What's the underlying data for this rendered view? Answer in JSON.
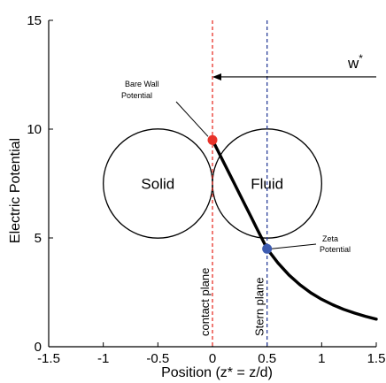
{
  "chart_data": {
    "type": "line",
    "xlabel": "Position (z* = z/d)",
    "ylabel": "Electric Potential",
    "xlim": [
      -1.5,
      1.5
    ],
    "ylim": [
      0,
      15
    ],
    "x_ticks": [
      "-1.5",
      "-1",
      "-0.5",
      "0",
      "0.5",
      "1",
      "1.5"
    ],
    "y_ticks": [
      "0",
      "5",
      "10",
      "15"
    ],
    "grid": false,
    "series": [
      {
        "color": "#000000",
        "x": [
          0,
          0.05,
          0.1,
          0.15,
          0.2,
          0.25,
          0.3,
          0.35,
          0.4,
          0.45,
          0.5,
          0.6,
          0.7,
          0.8,
          0.9,
          1.0,
          1.1,
          1.2,
          1.3,
          1.4,
          1.5
        ],
        "y": [
          9.5,
          9.0,
          8.5,
          8.0,
          7.5,
          7.0,
          6.5,
          6.0,
          5.5,
          5.0,
          4.5,
          3.85,
          3.3,
          2.85,
          2.48,
          2.18,
          1.93,
          1.72,
          1.55,
          1.4,
          1.27
        ]
      }
    ],
    "circles": [
      {
        "label": "Solid",
        "cx": -0.5,
        "cy": 7.5,
        "r": 0.5
      },
      {
        "label": "Fluid",
        "cx": 0.5,
        "cy": 7.5,
        "r": 0.5
      }
    ],
    "vlines": [
      {
        "x": 0,
        "color": "#e8332a",
        "label": "contact plane"
      },
      {
        "x": 0.5,
        "color": "#2b3f9a",
        "label": "Stern plane"
      }
    ],
    "markers": [
      {
        "x": 0,
        "y": 9.5,
        "color": "#e8332a",
        "label": [
          "Bare Wall",
          "Potential"
        ]
      },
      {
        "x": 0.5,
        "y": 4.5,
        "color": "#3d5bb0",
        "label": [
          "Zeta",
          "Potential"
        ]
      }
    ],
    "w_arrow": {
      "label": "w*",
      "from_x": 1.5,
      "to_x": 0,
      "y": 12.4
    }
  }
}
